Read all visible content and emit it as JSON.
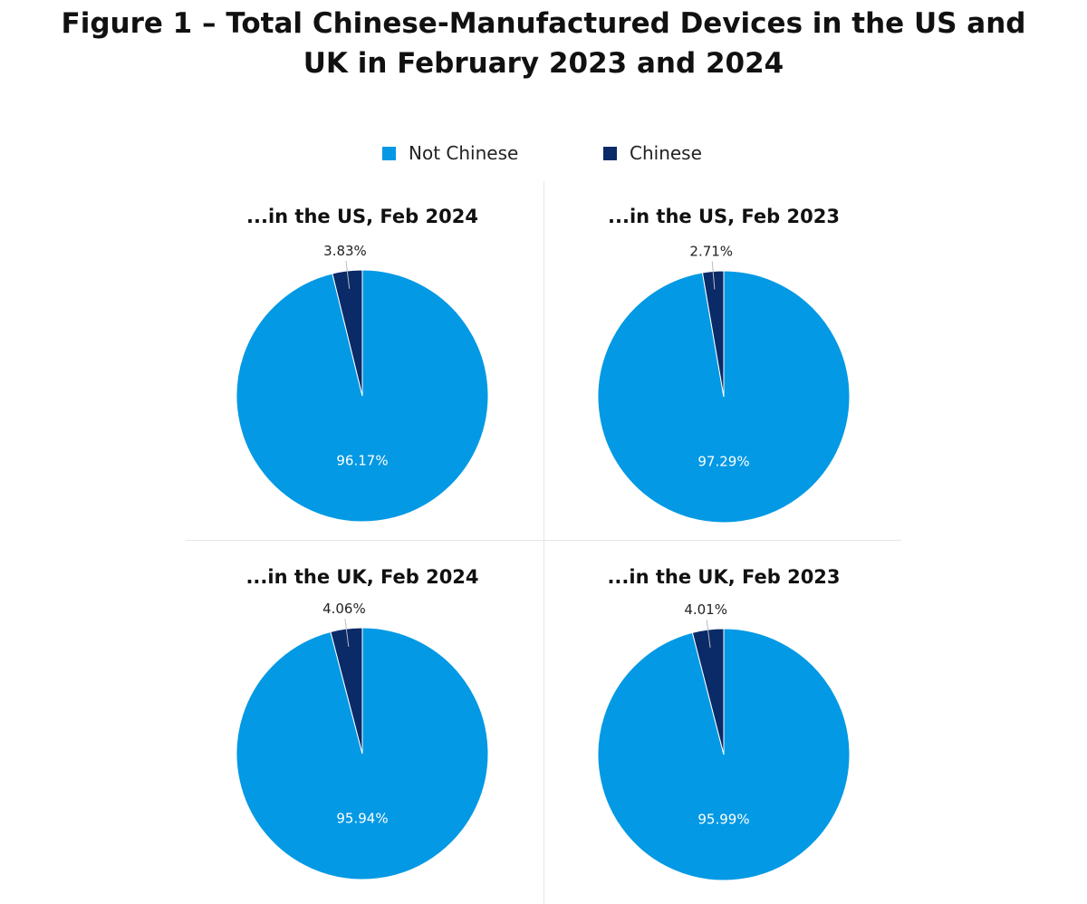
{
  "title_lines": [
    "Figure 1 – Total Chinese-Manufactured Devices in the US and",
    "UK in February 2023 and 2024"
  ],
  "legend": [
    {
      "label": "Not Chinese",
      "color": "#0399e4"
    },
    {
      "label": "Chinese",
      "color": "#0a2a68"
    }
  ],
  "chart_data": [
    {
      "type": "pie",
      "title": "...in the US, Feb 2024",
      "categories": [
        "Not Chinese",
        "Chinese"
      ],
      "values": [
        96.17,
        3.83
      ],
      "labels": [
        "96.17%",
        "3.83%"
      ],
      "colors": [
        "#0399e4",
        "#0a2a68"
      ]
    },
    {
      "type": "pie",
      "title": "...in the US, Feb 2023",
      "categories": [
        "Not Chinese",
        "Chinese"
      ],
      "values": [
        97.29,
        2.71
      ],
      "labels": [
        "97.29%",
        "2.71%"
      ],
      "colors": [
        "#0399e4",
        "#0a2a68"
      ]
    },
    {
      "type": "pie",
      "title": "...in the UK, Feb 2024",
      "categories": [
        "Not Chinese",
        "Chinese"
      ],
      "values": [
        95.94,
        4.06
      ],
      "labels": [
        "95.94%",
        "4.06%"
      ],
      "colors": [
        "#0399e4",
        "#0a2a68"
      ]
    },
    {
      "type": "pie",
      "title": "...in the UK, Feb 2023",
      "categories": [
        "Not Chinese",
        "Chinese"
      ],
      "values": [
        95.99,
        4.01
      ],
      "labels": [
        "95.99%",
        "4.01%"
      ],
      "colors": [
        "#0399e4",
        "#0a2a68"
      ]
    }
  ]
}
